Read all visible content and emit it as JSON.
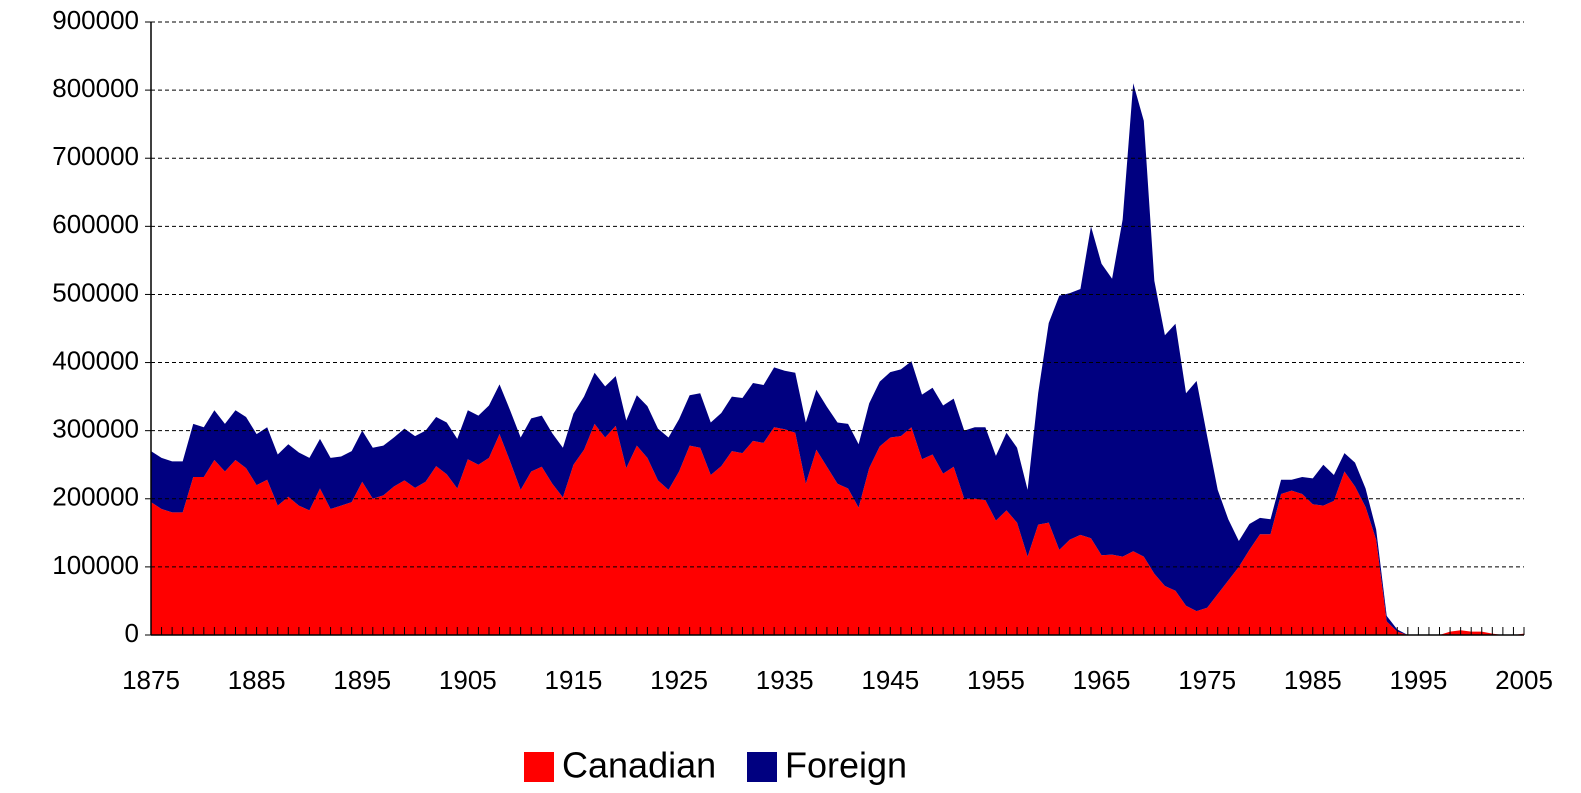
{
  "chart_data": {
    "type": "stacked_area",
    "x": [
      1875,
      1876,
      1877,
      1878,
      1879,
      1880,
      1881,
      1882,
      1883,
      1884,
      1885,
      1886,
      1887,
      1888,
      1889,
      1890,
      1891,
      1892,
      1893,
      1894,
      1895,
      1896,
      1897,
      1898,
      1899,
      1900,
      1901,
      1902,
      1903,
      1904,
      1905,
      1906,
      1907,
      1908,
      1909,
      1910,
      1911,
      1912,
      1913,
      1914,
      1915,
      1916,
      1917,
      1918,
      1919,
      1920,
      1921,
      1922,
      1923,
      1924,
      1925,
      1926,
      1927,
      1928,
      1929,
      1930,
      1931,
      1932,
      1933,
      1934,
      1935,
      1936,
      1937,
      1938,
      1939,
      1940,
      1941,
      1942,
      1943,
      1944,
      1945,
      1946,
      1947,
      1948,
      1949,
      1950,
      1951,
      1952,
      1953,
      1954,
      1955,
      1956,
      1957,
      1958,
      1959,
      1960,
      1961,
      1962,
      1963,
      1964,
      1965,
      1966,
      1967,
      1968,
      1969,
      1970,
      1971,
      1972,
      1973,
      1974,
      1975,
      1976,
      1977,
      1978,
      1979,
      1980,
      1981,
      1982,
      1983,
      1984,
      1985,
      1986,
      1987,
      1988,
      1989,
      1990,
      1991,
      1992,
      1993,
      1994,
      1995,
      1996,
      1997,
      1998,
      1999,
      2000,
      2001,
      2002,
      2003,
      2004,
      2005
    ],
    "series": [
      {
        "name": "Canadian",
        "color": "#ff0000",
        "values": [
          195000,
          185000,
          180000,
          180000,
          232000,
          232000,
          257000,
          240000,
          257000,
          245000,
          220000,
          228000,
          190000,
          203000,
          190000,
          183000,
          215000,
          185000,
          190000,
          195000,
          225000,
          200000,
          205000,
          218000,
          227000,
          216000,
          225000,
          248000,
          236000,
          215000,
          258000,
          250000,
          260000,
          295000,
          255000,
          213000,
          240000,
          247000,
          222000,
          202000,
          250000,
          272000,
          310000,
          290000,
          307000,
          245000,
          278000,
          260000,
          227000,
          213000,
          240000,
          278000,
          275000,
          235000,
          248000,
          270000,
          267000,
          285000,
          282000,
          305000,
          302000,
          297000,
          222000,
          272000,
          247000,
          222000,
          215000,
          187000,
          245000,
          277000,
          290000,
          292000,
          305000,
          258000,
          265000,
          237000,
          247000,
          200000,
          200000,
          198000,
          168000,
          183000,
          165000,
          115000,
          162000,
          165000,
          125000,
          140000,
          147000,
          142000,
          117000,
          118000,
          115000,
          123000,
          115000,
          90000,
          72000,
          65000,
          43000,
          35000,
          40000,
          60000,
          80000,
          100000,
          125000,
          148000,
          148000,
          207000,
          212000,
          207000,
          192000,
          190000,
          197000,
          240000,
          218000,
          188000,
          140000,
          20000,
          5000,
          0,
          0,
          0,
          0,
          5000,
          7000,
          5000,
          5000,
          2000,
          0,
          0,
          2000
        ]
      },
      {
        "name": "Foreign",
        "color": "#000080",
        "values": [
          75000,
          75000,
          75000,
          75000,
          78000,
          73000,
          73000,
          70000,
          73000,
          75000,
          75000,
          77000,
          75000,
          77000,
          78000,
          77000,
          73000,
          75000,
          72000,
          75000,
          75000,
          75000,
          73000,
          72000,
          76000,
          76000,
          75000,
          72000,
          76000,
          73000,
          72000,
          72000,
          77000,
          73000,
          75000,
          77000,
          78000,
          75000,
          74000,
          73000,
          75000,
          78000,
          75000,
          75000,
          73000,
          70000,
          74000,
          76000,
          76000,
          77000,
          77000,
          74000,
          80000,
          77000,
          78000,
          80000,
          81000,
          85000,
          85000,
          88000,
          86000,
          88000,
          90000,
          88000,
          88000,
          90000,
          95000,
          93000,
          95000,
          95000,
          96000,
          98000,
          97000,
          95000,
          98000,
          100000,
          100000,
          100000,
          105000,
          107000,
          95000,
          114000,
          110000,
          98000,
          193000,
          293000,
          373000,
          362000,
          361000,
          458000,
          428000,
          405000,
          495000,
          687000,
          640000,
          430000,
          368000,
          392000,
          312000,
          338000,
          252000,
          153000,
          90000,
          38000,
          38000,
          24000,
          22000,
          21000,
          16000,
          25000,
          38000,
          60000,
          38000,
          27000,
          35000,
          27000,
          15000,
          8000,
          3000,
          0,
          0,
          0,
          0,
          0,
          0,
          0,
          0,
          0,
          0,
          0,
          0
        ]
      }
    ],
    "xlim": [
      1875,
      2005
    ],
    "xticks": [
      1875,
      1885,
      1895,
      1905,
      1915,
      1925,
      1935,
      1945,
      1955,
      1965,
      1975,
      1985,
      1995,
      2005
    ],
    "ylim": [
      0,
      900000
    ],
    "yticks": [
      0,
      100000,
      200000,
      300000,
      400000,
      500000,
      600000,
      700000,
      800000,
      900000
    ],
    "grid": true,
    "legend": "bottom"
  }
}
